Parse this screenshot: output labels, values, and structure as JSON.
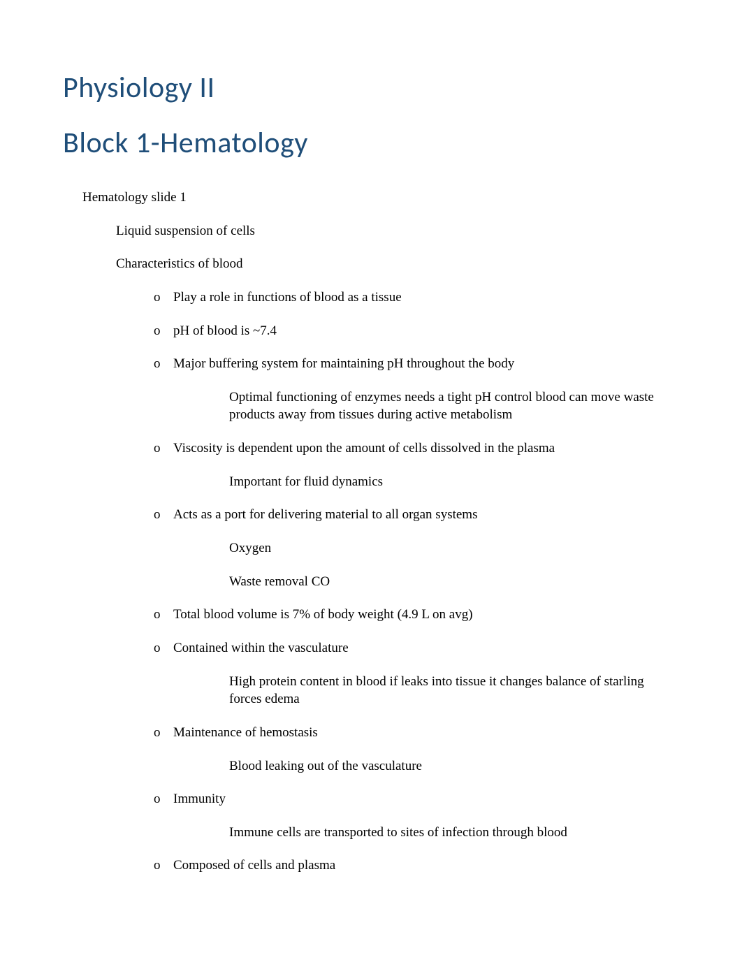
{
  "title1": "Physiology II",
  "title2": "Block 1-Hematology",
  "bullet_box": "",
  "bullet_o": "o",
  "items": [
    {
      "level": 0,
      "marker": "box",
      "text": "Hematology slide 1"
    },
    {
      "level": 1,
      "marker": "box",
      "text": "Liquid suspension of cells"
    },
    {
      "level": 1,
      "marker": "box",
      "text": "Characteristics of blood"
    },
    {
      "level": 2,
      "marker": "o",
      "text": "Play a role in functions of blood as a tissue"
    },
    {
      "level": 2,
      "marker": "o",
      "text": "pH of blood is ~7.4"
    },
    {
      "level": 2,
      "marker": "o",
      "text": "Major buffering system for maintaining pH throughout the body"
    },
    {
      "level": 3,
      "marker": "box",
      "text": "Optimal functioning of enzymes needs a tight pH control blood can move waste products away from tissues during active metabolism"
    },
    {
      "level": 2,
      "marker": "o",
      "text": "Viscosity is dependent upon the amount of cells dissolved in the plasma"
    },
    {
      "level": 3,
      "marker": "box",
      "text": "Important for fluid dynamics"
    },
    {
      "level": 2,
      "marker": "o",
      "text": "Acts as a port for delivering material to all organ systems"
    },
    {
      "level": 3,
      "marker": "box",
      "text": "Oxygen"
    },
    {
      "level": 3,
      "marker": "box",
      "text": "Waste removal CO"
    },
    {
      "level": 2,
      "marker": "o",
      "text": "Total blood volume is 7% of body weight (4.9 L on avg)"
    },
    {
      "level": 2,
      "marker": "o",
      "text": "Contained within the vasculature"
    },
    {
      "level": 3,
      "marker": "box",
      "text": "High protein content in blood if leaks into tissue it changes balance of starling forces edema"
    },
    {
      "level": 2,
      "marker": "o",
      "text": "Maintenance of hemostasis"
    },
    {
      "level": 3,
      "marker": "box",
      "text": "Blood leaking out of the vasculature"
    },
    {
      "level": 2,
      "marker": "o",
      "text": "Immunity"
    },
    {
      "level": 3,
      "marker": "box",
      "text": "Immune cells are transported to sites of infection through blood"
    },
    {
      "level": 2,
      "marker": "o",
      "text": "Composed of cells and plasma"
    }
  ]
}
